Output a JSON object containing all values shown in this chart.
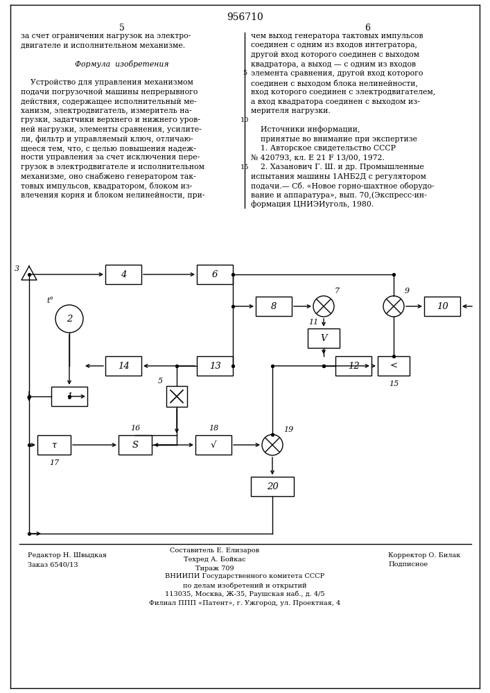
{
  "title": "956710",
  "left_col_num": "5",
  "right_col_num": "6",
  "line_numbers": [
    "5",
    "10",
    "15"
  ],
  "text_left_lines": [
    "за счет ограничения нагрузок на электро-",
    "двигателе и исполнительном механизме.",
    "",
    "      Формула  изобретения",
    "",
    "    Устройство для управления механизмом",
    "подачи погрузочной машины непрерывного",
    "действия, содержащее исполнительный ме-",
    "ханизм, электродвигатель, измеритель на-",
    "грузки, задатчики верхнего и нижнего уров-",
    "ней нагрузки, элементы сравнения, усилите-",
    "ли, фильтр и управляемый ключ, отличаю-",
    "щееся тем, что, с целью повышения надеж-",
    "ности управления за счет исключения пере-",
    "грузок в электродвигателе и исполнительном",
    "механизме, оно снабжено генератором так-",
    "товых импульсов, квадратором, блоком из-",
    "влечения корня и блоком нелинейности, при-"
  ],
  "text_right_lines": [
    "чем выход генератора тактовых импульсов",
    "соединен с одним из входов интегратора,",
    "другой вход которого соединен с выходом",
    "квадратора, а выход — с одним из входов",
    "элемента сравнения, другой вход которого",
    "соединен с выходом блока нелинейности,",
    "вход которого соединен с электродвигателем,",
    "а вход квадратора соединен с выходом из-",
    "мерителя нагрузки.",
    "",
    "    Источники информации,",
    "    принятые во внимание при экспертизе",
    "    1. Авторское свидетельство СССР",
    "№ 420793, кл. Е 21 F 13/00, 1972.",
    "    2. Хазанович Г. Ш. и др. Промышленные",
    "испытания машины 1АНБ2Д с регулятором",
    "подачи.— Сб. «Новое горно-шахтное оборудо-",
    "вание и аппаратура», вып. 70,(Экспресс-ин-",
    "формация ЦНИЭИуголь, 1980."
  ],
  "footer_ed": "Редактор Н. Швыдкая",
  "footer_order": "Заказ 6540/13",
  "footer_comp": "Составитель Е. Елизаров",
  "footer_tech": "Техред А. Бойкас",
  "footer_circ": "Тираж 709",
  "footer_corr": "Корректор О. Билак",
  "footer_sign": "Подписное",
  "footer_org1": "ВНИИПИ Государственного комитета СССР",
  "footer_org2": "по делам изобретений и открытий",
  "footer_org3": "113035, Москва, Ж-35, Раушская наб., д. 4/5",
  "footer_org4": "Филиал ППП «Патент», г. Ужгород, ул. Проектная, 4"
}
